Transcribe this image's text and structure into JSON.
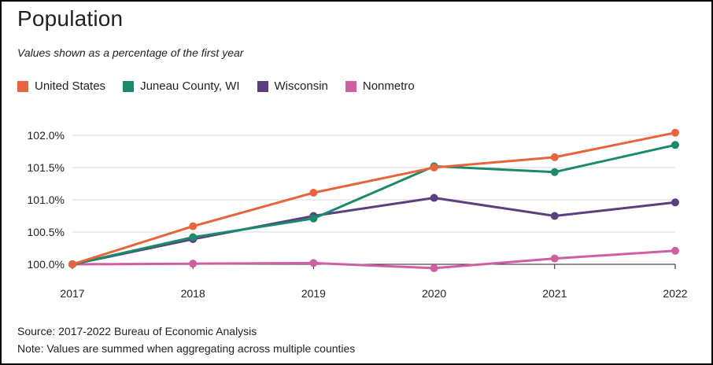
{
  "title": "Population",
  "subtitle": "Values shown as a percentage of the first year",
  "source": "Source: 2017-2022 Bureau of Economic Analysis",
  "note": "Note: Values are summed when aggregating across multiple counties",
  "chart_data": {
    "type": "line",
    "x": [
      "2017",
      "2018",
      "2019",
      "2020",
      "2021",
      "2022"
    ],
    "ylim": [
      100.0,
      102.0
    ],
    "y_ticks": [
      100.0,
      100.5,
      101.0,
      101.5,
      102.0
    ],
    "y_tick_labels": [
      "100.0%",
      "100.5%",
      "101.0%",
      "101.5%",
      "102.0%"
    ],
    "grid": true,
    "legend_position": "top-left",
    "series": [
      {
        "name": "United States",
        "color": "#E8643C",
        "values": [
          100.0,
          100.59,
          101.11,
          101.5,
          101.66,
          102.04
        ]
      },
      {
        "name": "Juneau County, WI",
        "color": "#1B8A6B",
        "values": [
          100.0,
          100.42,
          100.71,
          101.52,
          101.43,
          101.85
        ]
      },
      {
        "name": "Wisconsin",
        "color": "#5B3F7F",
        "values": [
          100.0,
          100.39,
          100.75,
          101.03,
          100.75,
          100.96
        ]
      },
      {
        "name": "Nonmetro",
        "color": "#D05FA2",
        "values": [
          100.0,
          100.01,
          100.02,
          99.94,
          100.09,
          100.21
        ]
      }
    ]
  }
}
